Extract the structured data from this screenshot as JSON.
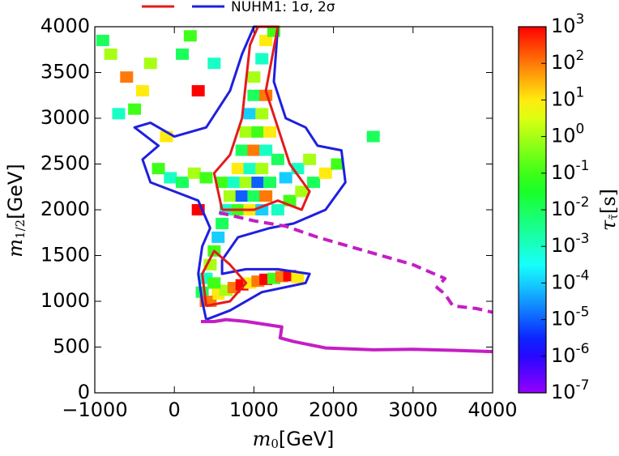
{
  "chart_data": {
    "type": "heatmap",
    "legend_text": "NUHM1: 1σ, 2σ",
    "legend_colors": [
      "#e41a1c",
      "#1f1fe0"
    ],
    "x_label": [
      "m",
      "0",
      "[GeV]"
    ],
    "y_label": [
      "m",
      "1/2",
      "[GeV]"
    ],
    "xlim": [
      -1000,
      4000
    ],
    "ylim": [
      0,
      4000
    ],
    "xticks": [
      {
        "value": -1000,
        "label": "−1000"
      },
      0,
      1000,
      2000,
      3000,
      4000
    ],
    "yticks": [
      0,
      500,
      1000,
      1500,
      2000,
      2500,
      3000,
      3500,
      4000
    ],
    "colorbar": {
      "label": [
        "τ",
        "τ̃",
        "[s]"
      ],
      "log": true,
      "lim": [
        1e-07,
        1000
      ],
      "ticks": [
        {
          "value": 1e-07,
          "label": "10^-7"
        },
        {
          "value": 1e-06,
          "label": "10^-6"
        },
        {
          "value": 1e-05,
          "label": "10^-5"
        },
        {
          "value": 0.0001,
          "label": "10^-4"
        },
        {
          "value": 0.001,
          "label": "10^-3"
        },
        {
          "value": 0.01,
          "label": "10^-2"
        },
        {
          "value": 0.1,
          "label": "10^-1"
        },
        {
          "value": 1,
          "label": "10^0"
        },
        {
          "value": 10,
          "label": "10^1"
        },
        {
          "value": 100,
          "label": "10^2"
        },
        {
          "value": 1000,
          "label": "10^3"
        }
      ]
    },
    "cells": {
      "x": [
        450,
        550,
        650,
        750,
        850,
        950,
        1050,
        1150,
        1250,
        1350,
        1450,
        1550,
        350,
        400,
        450,
        500,
        550,
        600,
        400,
        500,
        650,
        800,
        950,
        1100,
        700,
        850,
        1000,
        1150,
        600,
        750,
        900,
        1050,
        1200,
        800,
        950,
        1100,
        850,
        1000,
        1150,
        900,
        1050,
        1200,
        950,
        1100,
        1000,
        1150,
        1000,
        1100,
        1150,
        1250,
        1300,
        1450,
        1600,
        1750,
        1900,
        2050,
        1400,
        1550,
        1700,
        1300,
        -200,
        -50,
        100,
        250,
        400,
        -900,
        -800,
        -600,
        -500,
        -400,
        -700,
        -300,
        -100,
        100,
        500,
        300,
        2500,
        300,
        200
      ],
      "y": [
        1000,
        1080,
        1120,
        1150,
        1180,
        1200,
        1220,
        1240,
        1250,
        1270,
        1280,
        1260,
        1100,
        1250,
        1400,
        1550,
        1700,
        1850,
        1000,
        1200,
        2000,
        2000,
        2000,
        2000,
        2150,
        2150,
        2150,
        2150,
        2300,
        2300,
        2300,
        2300,
        2300,
        2450,
        2450,
        2450,
        2650,
        2650,
        2650,
        2850,
        2850,
        2850,
        3050,
        3050,
        3250,
        3250,
        3450,
        3650,
        3850,
        3950,
        2000,
        2100,
        2200,
        2300,
        2400,
        2500,
        2350,
        2450,
        2550,
        2550,
        2450,
        2350,
        2300,
        2400,
        2350,
        3850,
        3700,
        3450,
        3100,
        3300,
        3050,
        3600,
        2800,
        3700,
        3600,
        3300,
        2800,
        2000,
        3900
      ],
      "values": [
        100,
        10,
        1,
        100,
        1000,
        10,
        100,
        1000,
        0.1,
        100,
        1000,
        10,
        0.01,
        0.001,
        1,
        0.1,
        0.0001,
        0.01,
        100,
        0.1,
        0.001,
        0.1,
        10,
        0.0001,
        1,
        1e-05,
        0.01,
        100,
        0.1,
        0.001,
        1,
        1e-05,
        0.01,
        10,
        0.001,
        1,
        0.01,
        100,
        0.001,
        1,
        0.1,
        10,
        0.0001,
        1,
        0.01,
        100,
        1,
        0.001,
        10,
        0.1,
        0.001,
        0.1,
        1,
        0.01,
        10,
        0.1,
        0.0001,
        0.001,
        1,
        0.01,
        0.1,
        0.001,
        0.01,
        1,
        0.1,
        0.01,
        1,
        100,
        0.1,
        10,
        0.001,
        1,
        10,
        0.01,
        0.001,
        1000,
        0.01,
        1000,
        0.1
      ]
    },
    "lines": [
      {
        "color": "#1f1fe0",
        "style": "solid",
        "x": [
          400,
          350,
          300,
          350,
          450,
          300,
          0,
          -300,
          -400,
          -200,
          -500,
          -300,
          0,
          400,
          700,
          850,
          1000,
          1300,
          1250,
          1400,
          1650,
          1800,
          2100,
          2150,
          1900,
          1500,
          1200,
          800,
          600,
          600,
          900,
          1300,
          1700,
          1650,
          1100,
          700,
          400
        ],
        "y": [
          800,
          1000,
          1300,
          1600,
          1800,
          2100,
          2200,
          2300,
          2550,
          2700,
          2900,
          2950,
          2800,
          2900,
          3300,
          3700,
          4000,
          4000,
          3400,
          3000,
          2900,
          2700,
          2650,
          2300,
          2000,
          1850,
          1800,
          1700,
          1450,
          1300,
          1350,
          1350,
          1300,
          1200,
          1100,
          900,
          800
        ]
      },
      {
        "color": "#e41a1c",
        "style": "solid",
        "x": [
          400,
          350,
          500,
          700,
          900,
          700,
          400,
          null,
          600,
          500,
          700,
          850,
          950,
          1050,
          1300,
          1150,
          1300,
          1450,
          1700,
          1600,
          1300,
          1000,
          600
        ],
        "y": [
          950,
          1300,
          1550,
          1400,
          1200,
          1000,
          950,
          null,
          2000,
          2400,
          2600,
          3000,
          3800,
          4000,
          4000,
          3300,
          2900,
          2500,
          2200,
          2000,
          2100,
          2000,
          2000
        ]
      },
      {
        "color": "#c41ec4",
        "style": "solid",
        "x": [
          334,
          500,
          650,
          900,
          1200,
          1350,
          1330,
          1500,
          1900,
          2500,
          3000,
          3500,
          4000
        ],
        "y": [
          779,
          779,
          800,
          780,
          740,
          720,
          600,
          560,
          490,
          470,
          475,
          465,
          450
        ]
      },
      {
        "color": "#c41ec4",
        "style": "dashed",
        "x": [
          560,
          1000,
          1400,
          1800,
          2200,
          2600,
          3000,
          3400,
          3300,
          3400,
          3500,
          3800,
          4000
        ],
        "y": [
          1970,
          1880,
          1820,
          1700,
          1600,
          1500,
          1400,
          1250,
          1150,
          1080,
          950,
          920,
          880
        ]
      }
    ]
  }
}
